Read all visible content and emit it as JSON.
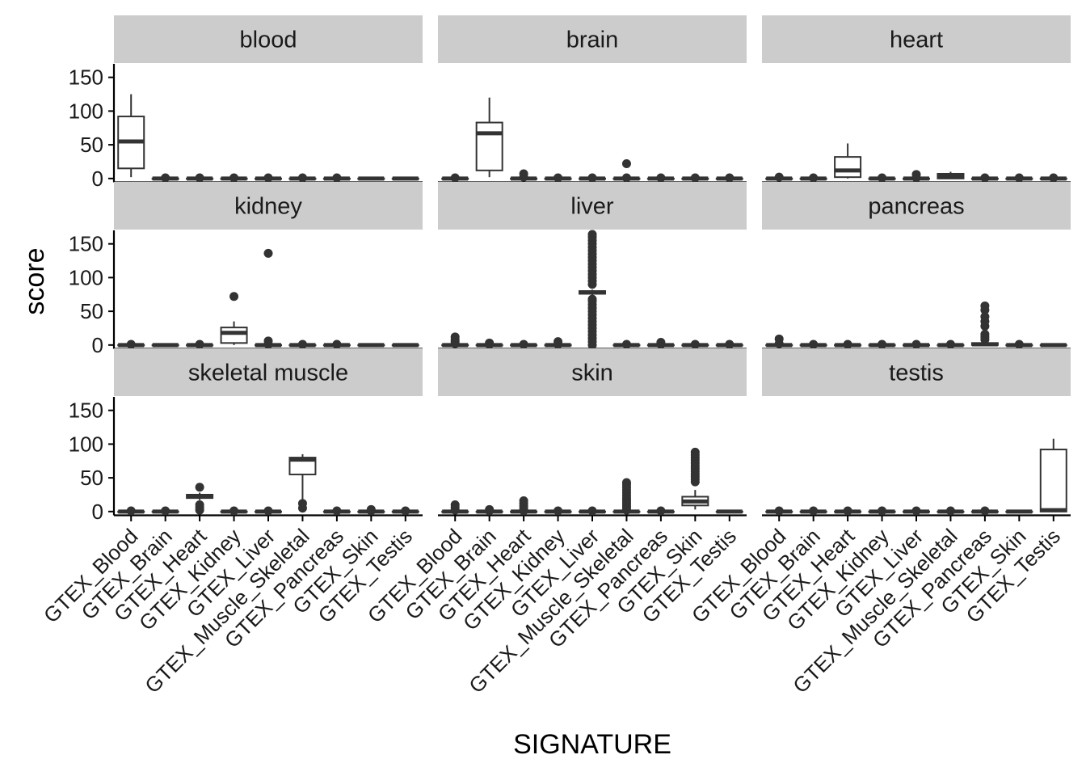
{
  "chart_data": {
    "type": "boxplot",
    "xlabel": "SIGNATURE",
    "ylabel": "score",
    "ylim": [
      -5,
      170
    ],
    "yticks": [
      0,
      50,
      100,
      150
    ],
    "facet_layout": "3x3 grid, shared axes",
    "grid": false,
    "legend": "none",
    "colors": {
      "strip_bg": "#cccccc",
      "box_line": "#333333",
      "axis": "#000000"
    },
    "categories": [
      "GTEX_Blood",
      "GTEX_Brain",
      "GTEX_Heart",
      "GTEX_Kidney",
      "GTEX_Liver",
      "GTEX_Muscle_Skeletal",
      "GTEX_Pancreas",
      "GTEX_Skin",
      "GTEX_Testis"
    ],
    "facets": [
      {
        "name": "blood",
        "boxes": [
          {
            "q1": 15,
            "median": 55,
            "q3": 92,
            "lo": 2,
            "hi": 125,
            "out": []
          },
          {
            "q1": 0,
            "median": 0,
            "q3": 0,
            "lo": 0,
            "hi": 0,
            "out": [
              1
            ]
          },
          {
            "q1": 0,
            "median": 0,
            "q3": 0,
            "lo": 0,
            "hi": 0,
            "out": [
              1
            ]
          },
          {
            "q1": 0,
            "median": 0,
            "q3": 0,
            "lo": 0,
            "hi": 0,
            "out": [
              1
            ]
          },
          {
            "q1": 0,
            "median": 0,
            "q3": 0,
            "lo": 0,
            "hi": 0,
            "out": [
              1
            ]
          },
          {
            "q1": 0,
            "median": 0,
            "q3": 0,
            "lo": 0,
            "hi": 0,
            "out": [
              1
            ]
          },
          {
            "q1": 0,
            "median": 0,
            "q3": 0,
            "lo": 0,
            "hi": 0,
            "out": [
              1
            ]
          },
          {
            "q1": 0,
            "median": 0,
            "q3": 0,
            "lo": 0,
            "hi": 0,
            "out": []
          },
          {
            "q1": 0,
            "median": 0,
            "q3": 0,
            "lo": 0,
            "hi": 0,
            "out": []
          }
        ]
      },
      {
        "name": "brain",
        "boxes": [
          {
            "q1": 0,
            "median": 0,
            "q3": 0,
            "lo": 0,
            "hi": 0,
            "out": [
              1
            ]
          },
          {
            "q1": 12,
            "median": 67,
            "q3": 83,
            "lo": 2,
            "hi": 120,
            "out": []
          },
          {
            "q1": 0,
            "median": 0,
            "q3": 0,
            "lo": 0,
            "hi": 0,
            "out": [
              2,
              7
            ]
          },
          {
            "q1": 0,
            "median": 0,
            "q3": 0,
            "lo": 0,
            "hi": 0,
            "out": [
              1
            ]
          },
          {
            "q1": 0,
            "median": 0,
            "q3": 0,
            "lo": 0,
            "hi": 0,
            "out": [
              1
            ]
          },
          {
            "q1": 0,
            "median": 0,
            "q3": 0,
            "lo": 0,
            "hi": 0,
            "out": [
              1,
              22
            ]
          },
          {
            "q1": 0,
            "median": 0,
            "q3": 0,
            "lo": 0,
            "hi": 0,
            "out": [
              1
            ]
          },
          {
            "q1": 0,
            "median": 0,
            "q3": 0,
            "lo": 0,
            "hi": 0,
            "out": [
              1
            ]
          },
          {
            "q1": 0,
            "median": 0,
            "q3": 0,
            "lo": 0,
            "hi": 0,
            "out": [
              1
            ]
          }
        ]
      },
      {
        "name": "heart",
        "boxes": [
          {
            "q1": 0,
            "median": 0,
            "q3": 0,
            "lo": 0,
            "hi": 0,
            "out": [
              2
            ]
          },
          {
            "q1": 0,
            "median": 0,
            "q3": 0,
            "lo": 0,
            "hi": 0,
            "out": [
              1
            ]
          },
          {
            "q1": 2,
            "median": 12,
            "q3": 32,
            "lo": 0,
            "hi": 52,
            "out": []
          },
          {
            "q1": 0,
            "median": 0,
            "q3": 0,
            "lo": 0,
            "hi": 0,
            "out": [
              1
            ]
          },
          {
            "q1": 0,
            "median": 0,
            "q3": 0,
            "lo": 0,
            "hi": 0,
            "out": [
              1,
              6
            ]
          },
          {
            "q1": 0,
            "median": 3,
            "q3": 7,
            "lo": 0,
            "hi": 10,
            "out": []
          },
          {
            "q1": 0,
            "median": 0,
            "q3": 0,
            "lo": 0,
            "hi": 0,
            "out": [
              1
            ]
          },
          {
            "q1": 0,
            "median": 0,
            "q3": 0,
            "lo": 0,
            "hi": 0,
            "out": [
              1
            ]
          },
          {
            "q1": 0,
            "median": 0,
            "q3": 0,
            "lo": 0,
            "hi": 0,
            "out": [
              1
            ]
          }
        ]
      },
      {
        "name": "kidney",
        "boxes": [
          {
            "q1": 0,
            "median": 0,
            "q3": 0,
            "lo": 0,
            "hi": 0,
            "out": [
              1
            ]
          },
          {
            "q1": 0,
            "median": 0,
            "q3": 0,
            "lo": 0,
            "hi": 0,
            "out": []
          },
          {
            "q1": 0,
            "median": 0,
            "q3": 0,
            "lo": 0,
            "hi": 0,
            "out": [
              1
            ]
          },
          {
            "q1": 3,
            "median": 18,
            "q3": 26,
            "lo": 0,
            "hi": 35,
            "out": [
              72
            ]
          },
          {
            "q1": 0,
            "median": 0,
            "q3": 0,
            "lo": 0,
            "hi": 0,
            "out": [
              1,
              6,
              136
            ]
          },
          {
            "q1": 0,
            "median": 0,
            "q3": 0,
            "lo": 0,
            "hi": 0,
            "out": [
              1
            ]
          },
          {
            "q1": 0,
            "median": 0,
            "q3": 0,
            "lo": 0,
            "hi": 0,
            "out": [
              1
            ]
          },
          {
            "q1": 0,
            "median": 0,
            "q3": 0,
            "lo": 0,
            "hi": 0,
            "out": []
          },
          {
            "q1": 0,
            "median": 0,
            "q3": 0,
            "lo": 0,
            "hi": 0,
            "out": []
          }
        ]
      },
      {
        "name": "liver",
        "boxes": [
          {
            "q1": 0,
            "median": 0,
            "q3": 0,
            "lo": 0,
            "hi": 0,
            "out": [
              2,
              5,
              8,
              12
            ]
          },
          {
            "q1": 0,
            "median": 0,
            "q3": 0,
            "lo": 0,
            "hi": 0,
            "out": [
              1,
              3
            ]
          },
          {
            "q1": 0,
            "median": 0,
            "q3": 0,
            "lo": 0,
            "hi": 0,
            "out": [
              1
            ]
          },
          {
            "q1": 0,
            "median": 0,
            "q3": 0,
            "lo": 0,
            "hi": 0,
            "out": [
              1,
              5
            ]
          },
          {
            "q1": 76,
            "median": 78,
            "q3": 80,
            "lo": 74,
            "hi": 82,
            "out": [
              0,
              5,
              10,
              15,
              20,
              25,
              30,
              35,
              40,
              45,
              50,
              55,
              60,
              65,
              68,
              90,
              95,
              100,
              105,
              110,
              115,
              120,
              125,
              130,
              135,
              140,
              145,
              150,
              155,
              160,
              164
            ]
          },
          {
            "q1": 0,
            "median": 0,
            "q3": 0,
            "lo": 0,
            "hi": 0,
            "out": [
              1
            ]
          },
          {
            "q1": 0,
            "median": 0,
            "q3": 0,
            "lo": 0,
            "hi": 0,
            "out": [
              1,
              4
            ]
          },
          {
            "q1": 0,
            "median": 0,
            "q3": 0,
            "lo": 0,
            "hi": 0,
            "out": [
              1
            ]
          },
          {
            "q1": 0,
            "median": 0,
            "q3": 0,
            "lo": 0,
            "hi": 0,
            "out": [
              1
            ]
          }
        ]
      },
      {
        "name": "pancreas",
        "boxes": [
          {
            "q1": 0,
            "median": 0,
            "q3": 0,
            "lo": 0,
            "hi": 0,
            "out": [
              2,
              9
            ]
          },
          {
            "q1": 0,
            "median": 0,
            "q3": 0,
            "lo": 0,
            "hi": 0,
            "out": [
              1
            ]
          },
          {
            "q1": 0,
            "median": 0,
            "q3": 0,
            "lo": 0,
            "hi": 0,
            "out": [
              1
            ]
          },
          {
            "q1": 0,
            "median": 0,
            "q3": 0,
            "lo": 0,
            "hi": 0,
            "out": [
              1
            ]
          },
          {
            "q1": 0,
            "median": 0,
            "q3": 0,
            "lo": 0,
            "hi": 0,
            "out": [
              1
            ]
          },
          {
            "q1": 0,
            "median": 0,
            "q3": 0,
            "lo": 0,
            "hi": 0,
            "out": [
              1
            ]
          },
          {
            "q1": 0,
            "median": 1,
            "q3": 3,
            "lo": 0,
            "hi": 5,
            "out": [
              8,
              12,
              16,
              28,
              35,
              42,
              52,
              58
            ]
          },
          {
            "q1": 0,
            "median": 0,
            "q3": 0,
            "lo": 0,
            "hi": 0,
            "out": [
              1
            ]
          },
          {
            "q1": 0,
            "median": 0,
            "q3": 0,
            "lo": 0,
            "hi": 0,
            "out": []
          }
        ]
      },
      {
        "name": "skeletal muscle",
        "boxes": [
          {
            "q1": 0,
            "median": 0,
            "q3": 0,
            "lo": 0,
            "hi": 0,
            "out": [
              1
            ]
          },
          {
            "q1": 0,
            "median": 0,
            "q3": 0,
            "lo": 0,
            "hi": 0,
            "out": [
              1
            ]
          },
          {
            "q1": 20,
            "median": 23,
            "q3": 25,
            "lo": 17,
            "hi": 28,
            "out": [
              2,
              6,
              10,
              36
            ]
          },
          {
            "q1": 0,
            "median": 0,
            "q3": 0,
            "lo": 0,
            "hi": 0,
            "out": [
              1
            ]
          },
          {
            "q1": 0,
            "median": 0,
            "q3": 0,
            "lo": 0,
            "hi": 0,
            "out": [
              1
            ]
          },
          {
            "q1": 55,
            "median": 77,
            "q3": 80,
            "lo": 18,
            "hi": 85,
            "out": [
              5,
              12
            ]
          },
          {
            "q1": 0,
            "median": 0,
            "q3": 0,
            "lo": 0,
            "hi": 0,
            "out": [
              1
            ]
          },
          {
            "q1": 0,
            "median": 0,
            "q3": 0,
            "lo": 0,
            "hi": 0,
            "out": [
              1,
              3
            ]
          },
          {
            "q1": 0,
            "median": 0,
            "q3": 0,
            "lo": 0,
            "hi": 0,
            "out": [
              1
            ]
          }
        ]
      },
      {
        "name": "skin",
        "boxes": [
          {
            "q1": 0,
            "median": 0,
            "q3": 0,
            "lo": 0,
            "hi": 0,
            "out": [
              2,
              6,
              10
            ]
          },
          {
            "q1": 0,
            "median": 0,
            "q3": 0,
            "lo": 0,
            "hi": 0,
            "out": [
              1,
              3
            ]
          },
          {
            "q1": 0,
            "median": 0,
            "q3": 0,
            "lo": 0,
            "hi": 0,
            "out": [
              1,
              4,
              8,
              12,
              16
            ]
          },
          {
            "q1": 0,
            "median": 0,
            "q3": 0,
            "lo": 0,
            "hi": 0,
            "out": [
              1
            ]
          },
          {
            "q1": 0,
            "median": 0,
            "q3": 0,
            "lo": 0,
            "hi": 0,
            "out": [
              1
            ]
          },
          {
            "q1": 0,
            "median": 0,
            "q3": 0,
            "lo": 0,
            "hi": 0,
            "out": [
              2,
              5,
              8,
              11,
              14,
              17,
              20,
              24,
              28,
              32,
              36,
              40,
              43
            ]
          },
          {
            "q1": 0,
            "median": 0,
            "q3": 0,
            "lo": 0,
            "hi": 0,
            "out": [
              1
            ]
          },
          {
            "q1": 9,
            "median": 15,
            "q3": 22,
            "lo": 3,
            "hi": 32,
            "out": [
              44,
              48,
              52,
              56,
              60,
              64,
              68,
              72,
              76,
              80,
              84,
              88
            ]
          },
          {
            "q1": 0,
            "median": 0,
            "q3": 0,
            "lo": 0,
            "hi": 0,
            "out": []
          }
        ]
      },
      {
        "name": "testis",
        "boxes": [
          {
            "q1": 0,
            "median": 0,
            "q3": 0,
            "lo": 0,
            "hi": 0,
            "out": [
              1
            ]
          },
          {
            "q1": 0,
            "median": 0,
            "q3": 0,
            "lo": 0,
            "hi": 0,
            "out": [
              1
            ]
          },
          {
            "q1": 0,
            "median": 0,
            "q3": 0,
            "lo": 0,
            "hi": 0,
            "out": [
              1
            ]
          },
          {
            "q1": 0,
            "median": 0,
            "q3": 0,
            "lo": 0,
            "hi": 0,
            "out": [
              1
            ]
          },
          {
            "q1": 0,
            "median": 0,
            "q3": 0,
            "lo": 0,
            "hi": 0,
            "out": [
              1
            ]
          },
          {
            "q1": 0,
            "median": 0,
            "q3": 0,
            "lo": 0,
            "hi": 0,
            "out": [
              1
            ]
          },
          {
            "q1": 0,
            "median": 0,
            "q3": 0,
            "lo": 0,
            "hi": 0,
            "out": [
              1
            ]
          },
          {
            "q1": 0,
            "median": 0,
            "q3": 0,
            "lo": 0,
            "hi": 0,
            "out": []
          },
          {
            "q1": 0,
            "median": 2,
            "q3": 92,
            "lo": 0,
            "hi": 108,
            "out": []
          }
        ]
      }
    ]
  }
}
